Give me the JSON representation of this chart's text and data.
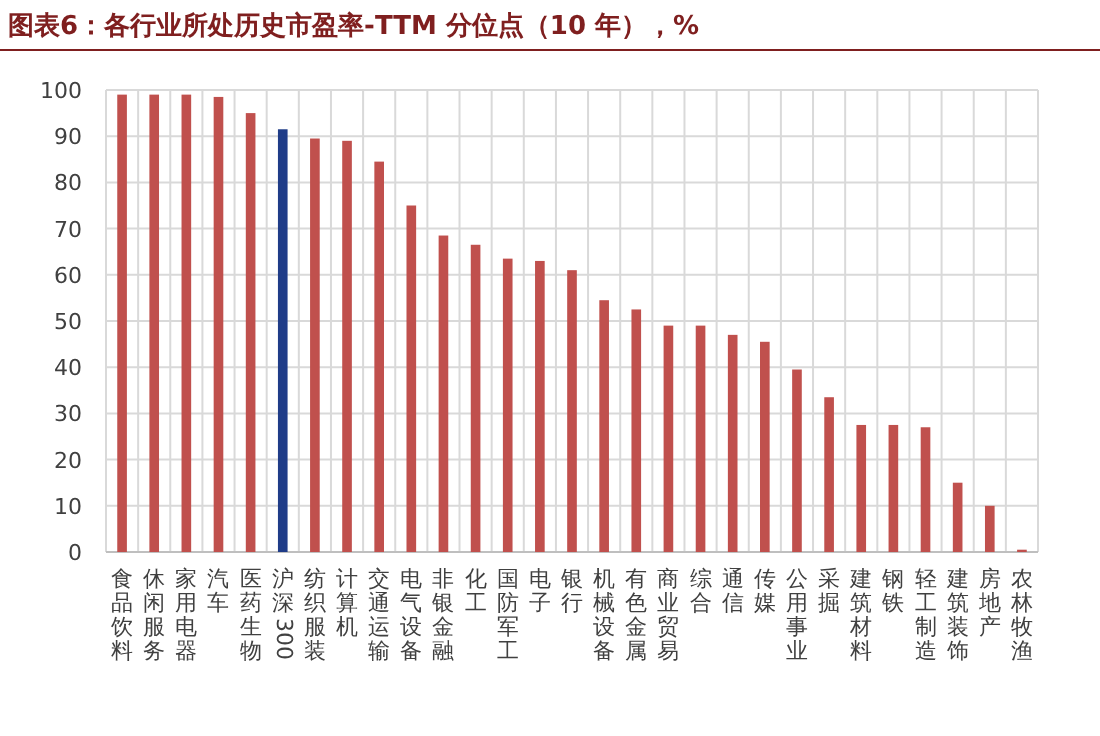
{
  "chart_data": {
    "type": "bar",
    "title": "图表6：各行业所处历史市盈率-TTM 分位点（10 年），%",
    "categories": [
      "食品饮料",
      "休闲服务",
      "家用电器",
      "汽车",
      "医药生物",
      "沪深300",
      "纺织服装",
      "计算机",
      "交通运输",
      "电气设备",
      "非银金融",
      "化工",
      "国防军工",
      "电子",
      "银行",
      "机械设备",
      "有色金属",
      "商业贸易",
      "综合",
      "通信",
      "传媒",
      "公用事业",
      "采掘",
      "建筑材料",
      "钢铁",
      "轻工制造",
      "建筑装饰",
      "房地产",
      "农林牧渔"
    ],
    "values": [
      99,
      99,
      99,
      98.5,
      95,
      91.5,
      89.5,
      89,
      84.5,
      75,
      68.5,
      66.5,
      63.5,
      63,
      61,
      54.5,
      52.5,
      49,
      49,
      47,
      45.5,
      39.5,
      33.5,
      27.5,
      27.5,
      27,
      15,
      10,
      0.5
    ],
    "colors": [
      "#c0504d",
      "#c0504d",
      "#c0504d",
      "#c0504d",
      "#c0504d",
      "#1f3c88",
      "#c0504d",
      "#c0504d",
      "#c0504d",
      "#c0504d",
      "#c0504d",
      "#c0504d",
      "#c0504d",
      "#c0504d",
      "#c0504d",
      "#c0504d",
      "#c0504d",
      "#c0504d",
      "#c0504d",
      "#c0504d",
      "#c0504d",
      "#c0504d",
      "#c0504d",
      "#c0504d",
      "#c0504d",
      "#c0504d",
      "#c0504d",
      "#c0504d",
      "#c0504d"
    ],
    "ylim": [
      0,
      100
    ],
    "yticks": [
      0,
      10,
      20,
      30,
      40,
      50,
      60,
      70,
      80,
      90,
      100
    ],
    "grid": true
  }
}
